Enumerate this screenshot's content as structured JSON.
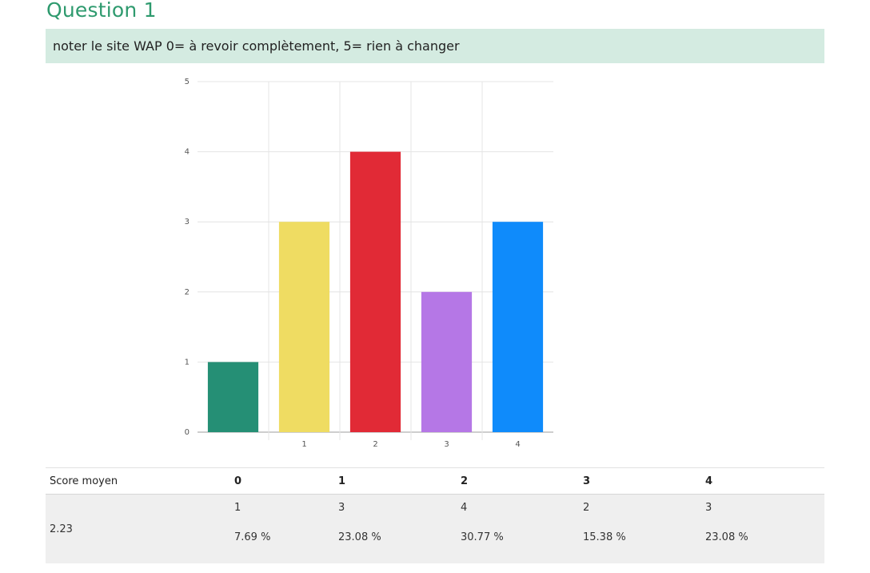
{
  "question": {
    "title": "Question 1",
    "text": "noter le site WAP 0= à revoir complètement, 5= rien à changer"
  },
  "chart_data": {
    "type": "bar",
    "categories": [
      "",
      "1",
      "2",
      "3",
      "4"
    ],
    "values": [
      1,
      3,
      4,
      2,
      3
    ],
    "colors": [
      "#258f75",
      "#efdc62",
      "#e12a36",
      "#b577e6",
      "#0f8bfb"
    ],
    "ylim": [
      0,
      5
    ],
    "yticks": [
      0,
      1,
      2,
      3,
      4,
      5
    ],
    "grid": true,
    "title": "",
    "xlabel": "",
    "ylabel": ""
  },
  "table": {
    "header_label": "Score moyen",
    "columns": [
      "0",
      "1",
      "2",
      "3",
      "4"
    ],
    "average": "2.23",
    "counts": [
      "1",
      "3",
      "4",
      "2",
      "3"
    ],
    "percentages": [
      "7.69 %",
      "23.08 %",
      "30.77 %",
      "15.38 %",
      "23.08 %"
    ]
  }
}
